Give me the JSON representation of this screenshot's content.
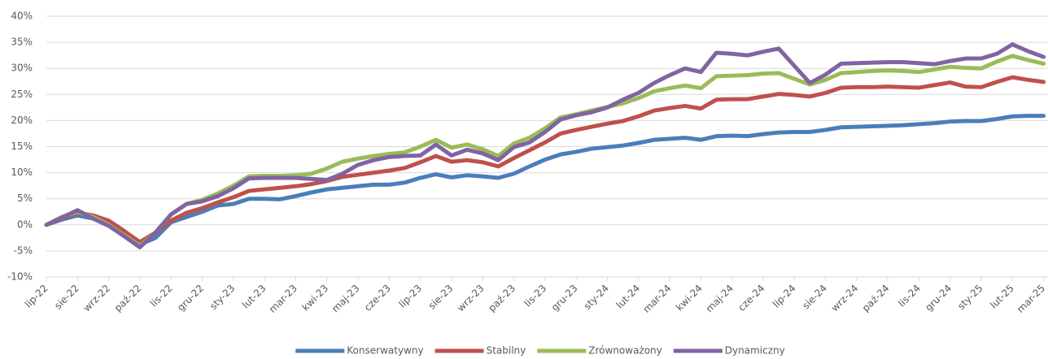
{
  "chart_data": {
    "type": "line",
    "categories": [
      "lip-22",
      null,
      "sie-22",
      null,
      "wrz-22",
      null,
      "paź-22",
      null,
      "lis-22",
      null,
      "gru-22",
      null,
      "sty-23",
      null,
      "lut-23",
      null,
      "mar-23",
      null,
      "kwi-23",
      null,
      "maj-23",
      null,
      "cze-23",
      null,
      "lip-23",
      null,
      "sie-23",
      null,
      "wrz-23",
      null,
      "paź-23",
      null,
      "lis-23",
      null,
      "gru-23",
      null,
      "sty-24",
      null,
      "lut-24",
      null,
      "mar-24",
      null,
      "kwi-24",
      null,
      "maj-24",
      null,
      "cze-24",
      null,
      "lip-24",
      null,
      "sie-24",
      null,
      "wrz-24",
      null,
      "paź-24",
      null,
      "lis-24",
      null,
      "gru-24",
      null,
      "sty-25",
      null,
      "lut-25",
      null,
      "mar-25"
    ],
    "series": [
      {
        "name": "Konserwatywny",
        "color": "#4a7ebb",
        "values": [
          0,
          1,
          1.8,
          1.2,
          0,
          -1.5,
          -3.8,
          -2.5,
          0.5,
          1.5,
          2.5,
          3.7,
          4.0,
          5.0,
          5.0,
          4.9,
          5.5,
          6.2,
          6.8,
          7.1,
          7.4,
          7.7,
          7.7,
          8.1,
          9.0,
          9.7,
          9.1,
          9.5,
          9.3,
          9.0,
          9.8,
          11.2,
          12.5,
          13.5,
          14.0,
          14.6,
          14.9,
          15.2,
          15.7,
          16.3,
          16.5,
          16.7,
          16.3,
          17.0,
          17.1,
          17.0,
          17.4,
          17.7,
          17.8,
          17.8,
          18.2,
          18.7,
          18.8,
          18.9,
          19.0,
          19.1,
          19.3,
          19.5,
          19.8,
          19.9,
          19.9,
          20.3,
          20.8,
          20.9,
          20.9
        ]
      },
      {
        "name": "Stabilny",
        "color": "#c0504d",
        "values": [
          0,
          1.3,
          2.3,
          1.8,
          0.8,
          -1.2,
          -3.3,
          -1.5,
          0.8,
          2.3,
          3.2,
          4.3,
          5.3,
          6.5,
          6.8,
          7.1,
          7.4,
          7.8,
          8.4,
          9.2,
          9.6,
          10.0,
          10.4,
          10.9,
          12.0,
          13.2,
          12.1,
          12.4,
          12.0,
          11.2,
          12.8,
          14.3,
          15.8,
          17.5,
          18.2,
          18.8,
          19.4,
          19.9,
          20.8,
          21.9,
          22.4,
          22.8,
          22.3,
          24.0,
          24.1,
          24.1,
          24.6,
          25.1,
          24.9,
          24.6,
          25.3,
          26.3,
          26.4,
          26.4,
          26.5,
          26.4,
          26.3,
          26.8,
          27.3,
          26.5,
          26.4,
          27.4,
          28.3,
          27.8,
          27.4
        ]
      },
      {
        "name": "Zrównoważony",
        "color": "#9bbb59",
        "values": [
          0,
          1.5,
          2.5,
          1.5,
          0,
          -2.0,
          -4.0,
          -1.5,
          2.0,
          4.0,
          4.8,
          6.0,
          7.5,
          9.3,
          9.4,
          9.4,
          9.5,
          9.8,
          10.8,
          12.1,
          12.7,
          13.2,
          13.6,
          13.9,
          15.0,
          16.3,
          14.8,
          15.4,
          14.5,
          13.2,
          15.6,
          16.7,
          18.5,
          20.6,
          21.2,
          21.9,
          22.6,
          23.3,
          24.3,
          25.6,
          26.2,
          26.7,
          26.2,
          28.5,
          28.6,
          28.7,
          29.0,
          29.1,
          28.0,
          26.9,
          27.8,
          29.1,
          29.3,
          29.5,
          29.6,
          29.5,
          29.3,
          29.8,
          30.3,
          30.1,
          30.0,
          31.3,
          32.4,
          31.6,
          30.9
        ]
      },
      {
        "name": "Dynamiczny",
        "color": "#8064a2",
        "values": [
          0,
          1.4,
          2.8,
          1.2,
          -0.2,
          -2.2,
          -4.3,
          -1.5,
          2.0,
          4.0,
          4.5,
          5.5,
          7.0,
          8.9,
          9.0,
          9.0,
          9.0,
          8.8,
          8.6,
          9.8,
          11.5,
          12.4,
          13.0,
          13.2,
          13.3,
          15.4,
          13.3,
          14.4,
          13.7,
          12.4,
          14.9,
          15.8,
          17.8,
          20.2,
          21.0,
          21.6,
          22.5,
          24.0,
          25.3,
          27.2,
          28.7,
          30.0,
          29.3,
          33.0,
          32.8,
          32.5,
          33.2,
          33.8,
          30.5,
          27.2,
          28.8,
          30.9,
          31.0,
          31.1,
          31.2,
          31.2,
          31.0,
          30.8,
          31.4,
          31.9,
          31.9,
          32.8,
          34.6,
          33.3,
          32.2
        ]
      }
    ],
    "ylim": [
      -10,
      40
    ],
    "yticks": [
      {
        "value": -10,
        "label": "-10%"
      },
      {
        "value": -5,
        "label": "-5%"
      },
      {
        "value": 0,
        "label": "0%"
      },
      {
        "value": 5,
        "label": "5%"
      },
      {
        "value": 10,
        "label": "10%"
      },
      {
        "value": 15,
        "label": "15%"
      },
      {
        "value": 20,
        "label": "20%"
      },
      {
        "value": 25,
        "label": "25%"
      },
      {
        "value": 30,
        "label": "30%"
      },
      {
        "value": 35,
        "label": "35%"
      },
      {
        "value": 40,
        "label": "40%"
      }
    ],
    "grid": true,
    "legend": "bottom"
  }
}
